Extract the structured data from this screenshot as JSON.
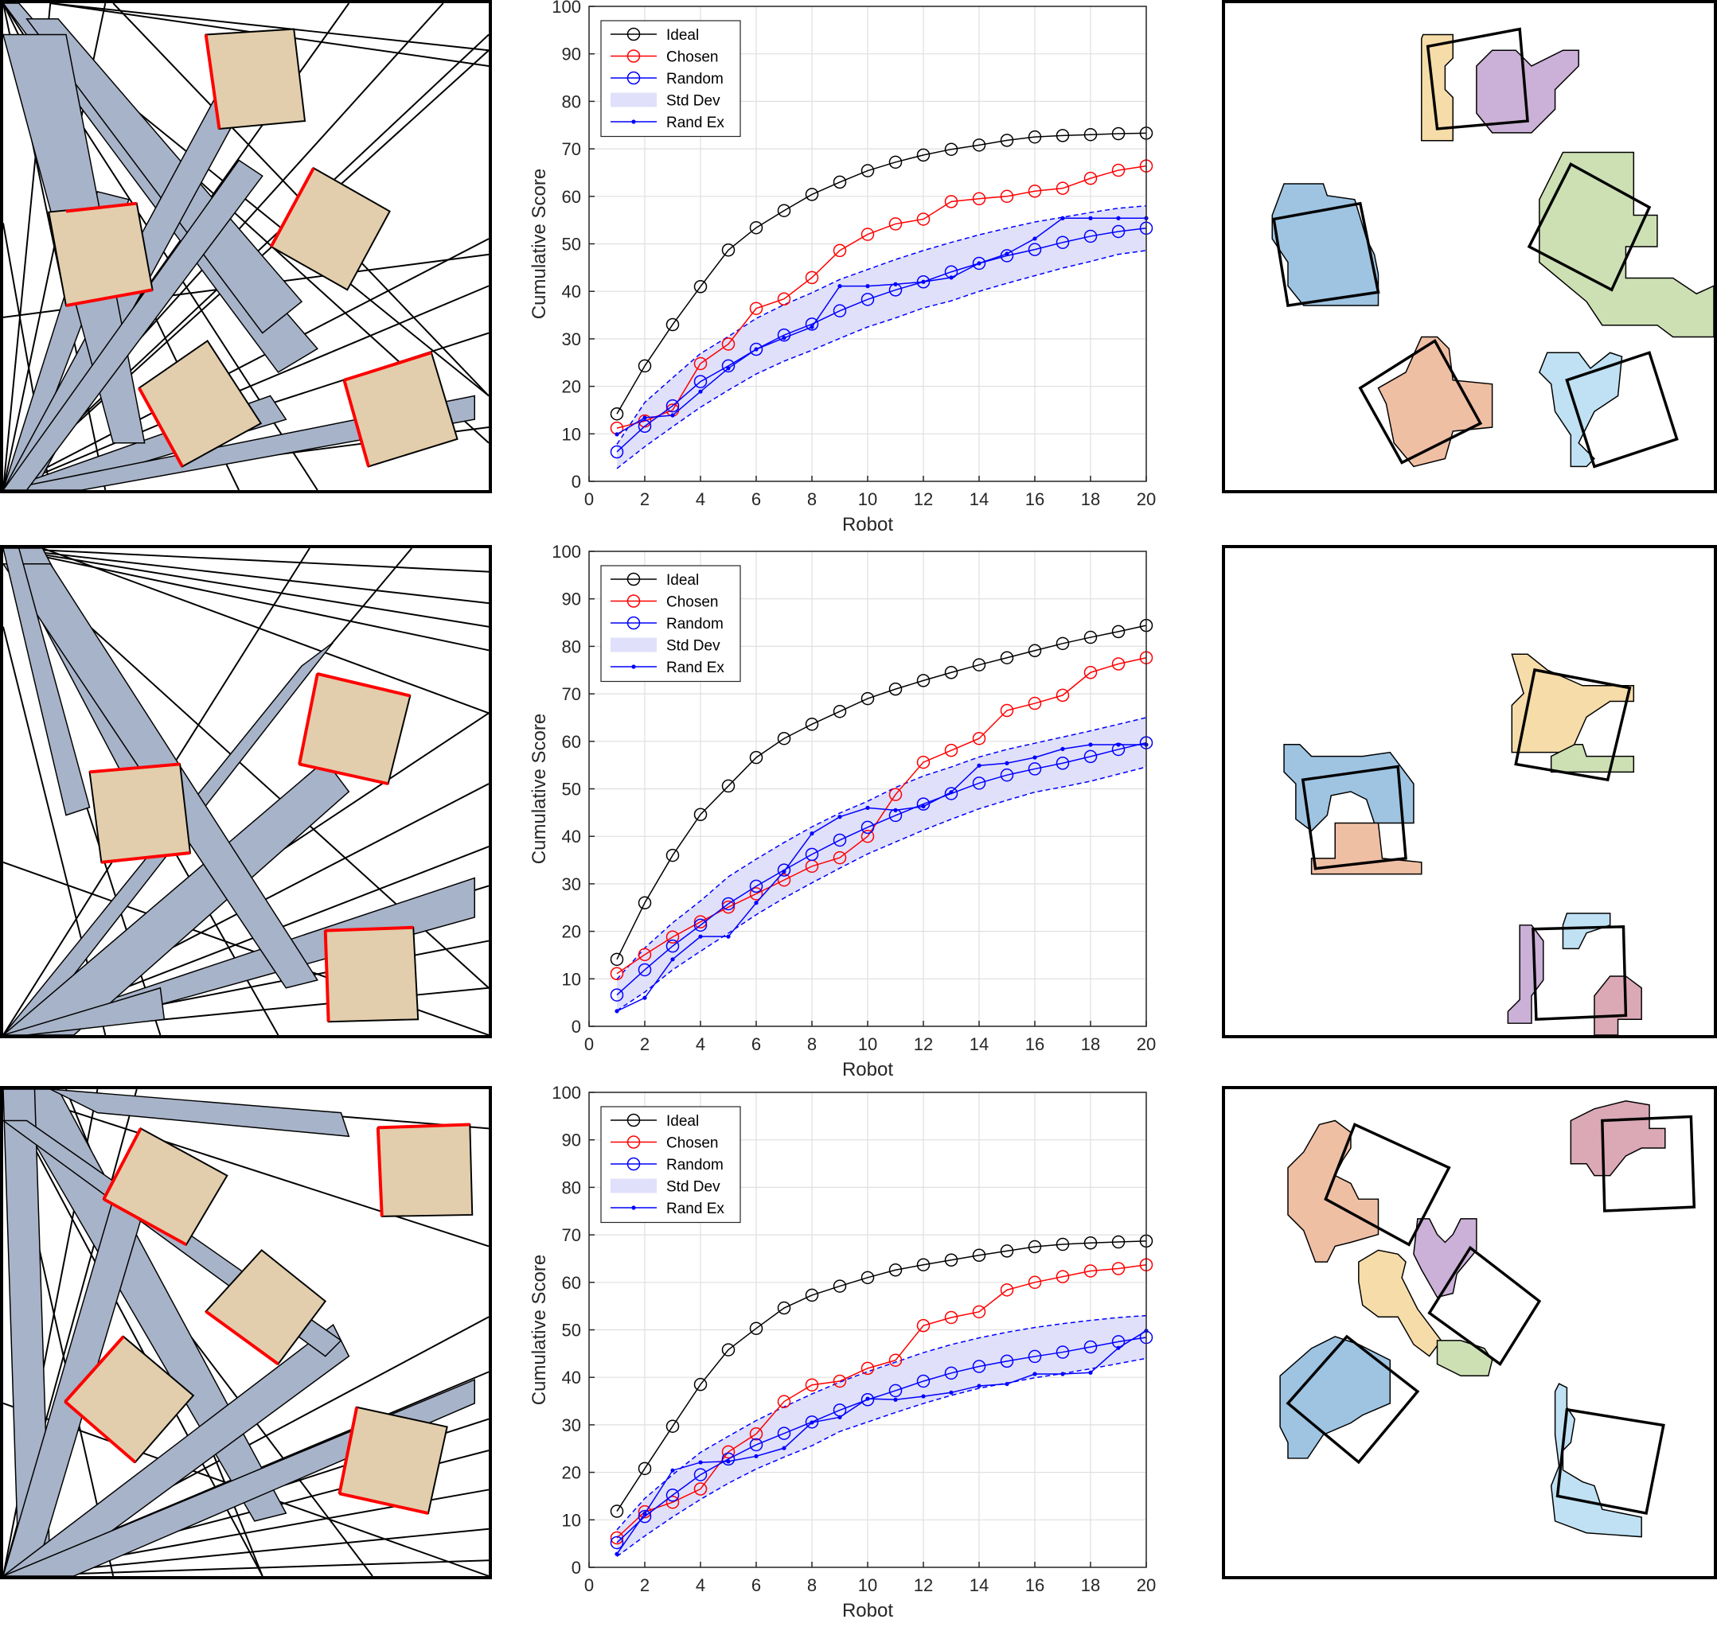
{
  "colors": {
    "ideal": "#000000",
    "chosen": "#ff0000",
    "random": "#0000ff",
    "std_band": "#e0e0fa",
    "shadow_fill": "#a7b3c8",
    "block_fill": "#e2ceac",
    "edge_highlight": "#ff0000",
    "piece_colors": [
      "#9ec4e2",
      "#f2cb9c",
      "#cbb0d7",
      "#cde0b4",
      "#efbfa4",
      "#bfe1f3",
      "#dba8b6",
      "#f6dca8"
    ]
  },
  "chart_data": [
    {
      "type": "line",
      "xlabel": "Robot",
      "ylabel": "Cumulative Score",
      "xlim": [
        0,
        20
      ],
      "ylim": [
        0,
        100
      ],
      "xticks": [
        "0",
        "2",
        "4",
        "6",
        "8",
        "10",
        "12",
        "14",
        "16",
        "18",
        "20"
      ],
      "yticks": [
        "0",
        "10",
        "20",
        "30",
        "40",
        "50",
        "60",
        "70",
        "80",
        "90",
        "100"
      ],
      "grid": true,
      "legend_position": "top-left",
      "legend": [
        "Ideal",
        "Chosen",
        "Random",
        "Std Dev",
        "Rand Ex"
      ],
      "x": [
        1,
        2,
        3,
        4,
        5,
        6,
        7,
        8,
        9,
        10,
        11,
        12,
        13,
        14,
        15,
        16,
        17,
        18,
        19,
        20
      ],
      "series": [
        {
          "name": "Ideal",
          "values": [
            14.2,
            24.3,
            33.0,
            41.0,
            48.7,
            53.4,
            57.0,
            60.4,
            63.0,
            65.4,
            67.2,
            68.7,
            69.9,
            70.8,
            71.8,
            72.5,
            72.8,
            73.0,
            73.2,
            73.3
          ]
        },
        {
          "name": "Chosen",
          "values": [
            11.2,
            12.7,
            15.0,
            24.8,
            28.9,
            36.4,
            38.4,
            42.9,
            48.6,
            52.0,
            54.2,
            55.2,
            58.9,
            59.5,
            60.0,
            61.1,
            61.7,
            63.8,
            65.5,
            66.4
          ]
        },
        {
          "name": "Random",
          "values": [
            6.2,
            11.6,
            15.9,
            21.0,
            24.3,
            27.8,
            30.8,
            33.1,
            35.9,
            38.3,
            40.3,
            42.0,
            44.1,
            45.9,
            47.5,
            48.8,
            50.3,
            51.6,
            52.6,
            53.3
          ]
        },
        {
          "name": "Rand Ex",
          "values": [
            9.9,
            13.4,
            13.9,
            18.9,
            23.8,
            27.8,
            30.2,
            32.5,
            41.1,
            41.1,
            41.5,
            42.0,
            42.9,
            45.9,
            47.9,
            51.1,
            55.4,
            55.4,
            55.4,
            55.4
          ]
        }
      ],
      "std_upper": [
        7.8,
        16.6,
        21.8,
        26.9,
        30.5,
        34.3,
        37.2,
        39.7,
        42.5,
        44.6,
        46.7,
        48.6,
        50.3,
        51.9,
        53.3,
        54.6,
        55.6,
        56.6,
        57.5,
        58.0
      ],
      "std_lower": [
        2.7,
        7.3,
        11.5,
        15.6,
        19.2,
        22.6,
        25.3,
        27.6,
        30.1,
        32.5,
        34.4,
        36.5,
        38.0,
        40.0,
        41.7,
        43.3,
        44.9,
        46.3,
        47.8,
        48.6
      ]
    },
    {
      "type": "line",
      "xlabel": "Robot",
      "ylabel": "Cumulative Score",
      "xlim": [
        0,
        20
      ],
      "ylim": [
        0,
        100
      ],
      "xticks": [
        "0",
        "2",
        "4",
        "6",
        "8",
        "10",
        "12",
        "14",
        "16",
        "18",
        "20"
      ],
      "yticks": [
        "0",
        "10",
        "20",
        "30",
        "40",
        "50",
        "60",
        "70",
        "80",
        "90",
        "100"
      ],
      "grid": true,
      "legend_position": "top-left",
      "legend": [
        "Ideal",
        "Chosen",
        "Random",
        "Std Dev",
        "Rand Ex"
      ],
      "x": [
        1,
        2,
        3,
        4,
        5,
        6,
        7,
        8,
        9,
        10,
        11,
        12,
        13,
        14,
        15,
        16,
        17,
        18,
        19,
        20
      ],
      "series": [
        {
          "name": "Ideal",
          "values": [
            14.1,
            26.0,
            36.0,
            44.6,
            50.6,
            56.6,
            60.6,
            63.6,
            66.3,
            69.0,
            71.0,
            72.8,
            74.5,
            76.1,
            77.6,
            79.1,
            80.6,
            81.9,
            83.1,
            84.4
          ]
        },
        {
          "name": "Chosen",
          "values": [
            11.1,
            15.1,
            18.8,
            22.0,
            25.1,
            27.9,
            30.8,
            33.7,
            35.5,
            40.0,
            48.8,
            55.6,
            58.1,
            60.6,
            66.5,
            68.0,
            69.7,
            74.5,
            76.3,
            77.6
          ]
        },
        {
          "name": "Random",
          "values": [
            6.6,
            11.9,
            16.9,
            21.3,
            25.8,
            29.5,
            32.9,
            36.2,
            39.2,
            41.9,
            44.4,
            46.8,
            49.0,
            51.2,
            52.9,
            54.2,
            55.4,
            56.8,
            58.3,
            59.7
          ]
        },
        {
          "name": "Rand Ex",
          "values": [
            3.2,
            6.0,
            14.1,
            18.9,
            18.9,
            26.0,
            32.6,
            40.6,
            44.1,
            46.0,
            45.5,
            46.3,
            49.3,
            54.9,
            55.4,
            56.6,
            58.4,
            59.3,
            59.3,
            59.3
          ]
        }
      ],
      "std_upper": [
        9.9,
        16.5,
        21.8,
        26.4,
        31.5,
        35.2,
        38.7,
        42.0,
        44.9,
        47.4,
        50.3,
        52.7,
        54.6,
        56.7,
        58.3,
        59.6,
        60.9,
        62.2,
        63.6,
        65.0
      ],
      "std_lower": [
        3.3,
        7.2,
        11.9,
        15.8,
        19.6,
        23.5,
        27.0,
        30.2,
        33.3,
        36.3,
        38.8,
        41.3,
        43.6,
        45.8,
        47.6,
        49.3,
        50.4,
        51.6,
        53.1,
        54.6
      ]
    },
    {
      "type": "line",
      "xlabel": "Robot",
      "ylabel": "Cumulative Score",
      "xlim": [
        0,
        20
      ],
      "ylim": [
        0,
        100
      ],
      "xticks": [
        "0",
        "2",
        "4",
        "6",
        "8",
        "10",
        "12",
        "14",
        "16",
        "18",
        "20"
      ],
      "yticks": [
        "0",
        "10",
        "20",
        "30",
        "40",
        "50",
        "60",
        "70",
        "80",
        "90",
        "100"
      ],
      "grid": true,
      "legend_position": "top-left",
      "legend": [
        "Ideal",
        "Chosen",
        "Random",
        "Std Dev",
        "Rand Ex"
      ],
      "x": [
        1,
        2,
        3,
        4,
        5,
        6,
        7,
        8,
        9,
        10,
        11,
        12,
        13,
        14,
        15,
        16,
        17,
        18,
        19,
        20
      ],
      "series": [
        {
          "name": "Ideal",
          "values": [
            11.8,
            20.8,
            29.7,
            38.5,
            45.8,
            50.3,
            54.6,
            57.3,
            59.2,
            61.0,
            62.6,
            63.7,
            64.7,
            65.7,
            66.6,
            67.5,
            68.0,
            68.3,
            68.5,
            68.7
          ]
        },
        {
          "name": "Chosen",
          "values": [
            6.2,
            11.7,
            13.7,
            16.5,
            24.3,
            28.1,
            34.9,
            38.4,
            39.2,
            41.9,
            43.6,
            50.9,
            52.6,
            53.8,
            58.4,
            60.0,
            61.2,
            62.4,
            62.9,
            63.7
          ]
        },
        {
          "name": "Random",
          "values": [
            5.2,
            10.7,
            15.2,
            19.5,
            22.8,
            25.8,
            28.2,
            30.6,
            33.1,
            35.3,
            37.2,
            39.2,
            40.9,
            42.3,
            43.4,
            44.4,
            45.3,
            46.4,
            47.5,
            48.4
          ]
        },
        {
          "name": "Rand Ex",
          "values": [
            2.8,
            11.3,
            20.4,
            22.1,
            22.3,
            23.4,
            25.1,
            30.5,
            31.6,
            35.5,
            35.3,
            36.0,
            36.8,
            38.2,
            38.6,
            40.7,
            40.7,
            41.0,
            46.2,
            49.8
          ]
        }
      ],
      "std_upper": [
        7.9,
        14.5,
        19.5,
        24.2,
        27.6,
        30.9,
        33.8,
        36.5,
        39.0,
        41.2,
        43.2,
        45.2,
        46.9,
        48.3,
        49.5,
        50.5,
        51.3,
        52.0,
        52.6,
        53.0
      ],
      "std_lower": [
        2.3,
        6.6,
        10.6,
        14.3,
        17.7,
        20.7,
        23.2,
        25.6,
        28.6,
        30.6,
        32.6,
        34.5,
        36.2,
        37.7,
        38.8,
        39.9,
        40.8,
        41.8,
        42.9,
        44.0
      ]
    }
  ]
}
